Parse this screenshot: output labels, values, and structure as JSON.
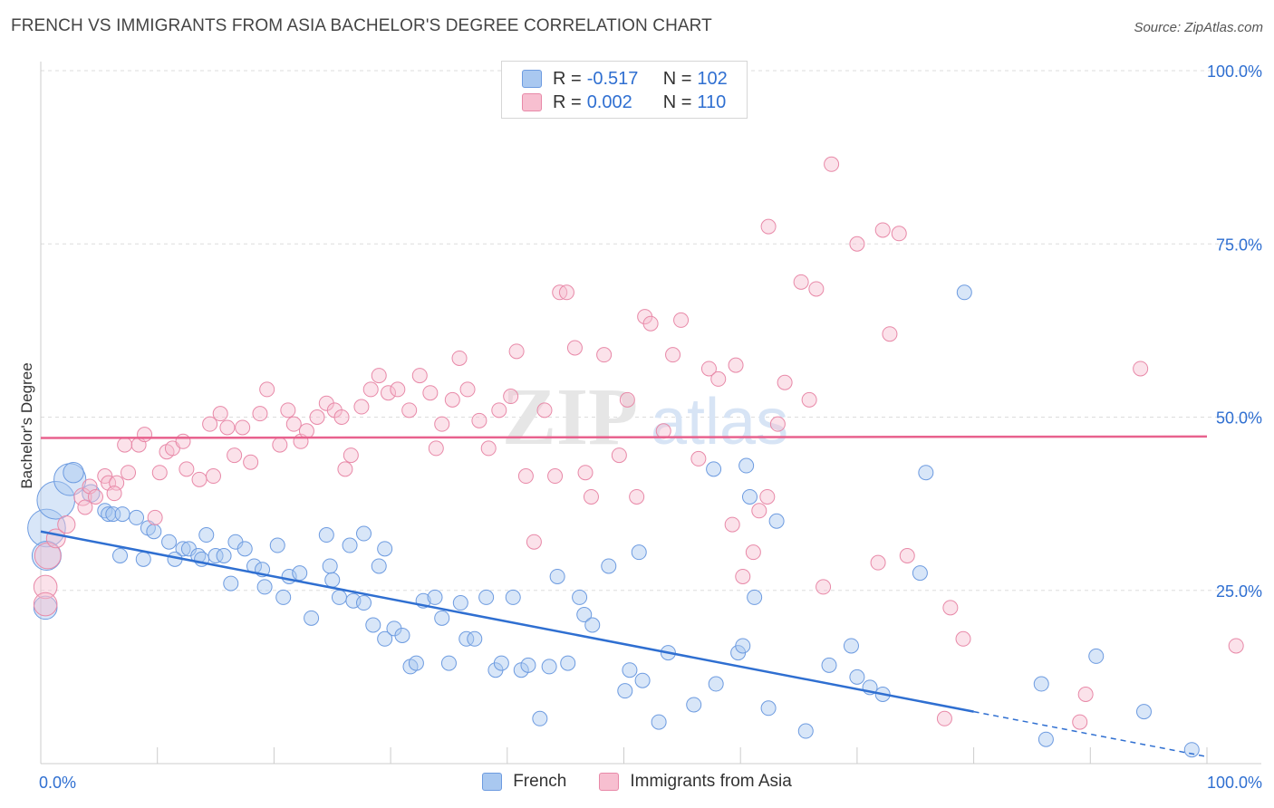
{
  "header": {
    "title": "FRENCH VS IMMIGRANTS FROM ASIA BACHELOR'S DEGREE CORRELATION CHART",
    "source": "Source: ZipAtlas.com"
  },
  "watermark": {
    "zip": "ZIP",
    "atlas": "atlas"
  },
  "legend": {
    "r_label": "R =",
    "n_label": "N =",
    "rows": [
      {
        "r": "-0.517",
        "n": "102",
        "color": "#a9c8f0",
        "border": "#6d9be0"
      },
      {
        "r": "0.002",
        "n": "110",
        "color": "#f7bfd0",
        "border": "#e889a8"
      }
    ]
  },
  "bottom_legend": [
    {
      "label": "French",
      "color": "#a9c8f0",
      "border": "#6d9be0"
    },
    {
      "label": "Immigrants from Asia",
      "color": "#f7bfd0",
      "border": "#e889a8"
    }
  ],
  "chart_data": {
    "type": "scatter",
    "ylabel": "Bachelor's Degree",
    "xlim": [
      0,
      100
    ],
    "ylim": [
      0,
      100
    ],
    "x_tick_labels": [
      {
        "value": 0,
        "label": "0.0%"
      },
      {
        "value": 100,
        "label": "100.0%"
      }
    ],
    "y_tick_labels": [
      {
        "value": 25,
        "label": "25.0%"
      },
      {
        "value": 50,
        "label": "50.0%"
      },
      {
        "value": 75,
        "label": "75.0%"
      },
      {
        "value": 100,
        "label": "100.0%"
      }
    ],
    "grid": true,
    "series": [
      {
        "name": "French",
        "color": "#6d9be0",
        "fill": "#a9c8f0",
        "line_color": "#2f6fd1",
        "trend": {
          "x0": 0,
          "y0": 33.5,
          "x1": 80,
          "y1": 7.5,
          "x_dash_end": 100,
          "y_dash_end": 1.0
        },
        "points": [
          [
            0.5,
            34,
            2.6
          ],
          [
            0.5,
            30,
            2.0
          ],
          [
            0.4,
            22.5,
            1.6
          ],
          [
            1.3,
            38,
            2.6
          ],
          [
            2.5,
            41,
            2.2
          ],
          [
            2.8,
            42,
            1.4
          ],
          [
            4.3,
            39,
            1.2
          ],
          [
            5.5,
            36.5,
            1
          ],
          [
            5.8,
            36,
            1
          ],
          [
            6.2,
            36,
            1
          ],
          [
            7,
            36,
            1
          ],
          [
            8.2,
            35.5,
            1
          ],
          [
            9.2,
            34,
            1
          ],
          [
            9.7,
            33.5,
            1
          ],
          [
            11,
            32,
            1
          ],
          [
            12.2,
            31,
            1
          ],
          [
            12.7,
            31,
            1
          ],
          [
            13.5,
            30,
            1
          ],
          [
            14.2,
            33,
            1
          ],
          [
            15,
            30,
            1
          ],
          [
            15.7,
            30,
            1
          ],
          [
            16.7,
            32,
            1
          ],
          [
            17.5,
            31,
            1
          ],
          [
            18.3,
            28.5,
            1
          ],
          [
            19,
            28,
            1
          ],
          [
            20.3,
            31.5,
            1
          ],
          [
            21.3,
            27,
            1
          ],
          [
            22.2,
            27.5,
            1
          ],
          [
            24.5,
            33,
            1
          ],
          [
            26.5,
            31.5,
            1
          ],
          [
            27.7,
            33.2,
            1
          ],
          [
            29,
            28.5,
            1
          ],
          [
            29.5,
            31,
            1
          ],
          [
            6.8,
            30,
            1
          ],
          [
            8.8,
            29.5,
            1
          ],
          [
            11.5,
            29.5,
            1
          ],
          [
            13.8,
            29.5,
            1
          ],
          [
            16.3,
            26,
            1
          ],
          [
            19.2,
            25.5,
            1
          ],
          [
            20.8,
            24,
            1
          ],
          [
            23.2,
            21,
            1
          ],
          [
            24.8,
            28.5,
            1
          ],
          [
            25,
            26.5,
            1
          ],
          [
            25.6,
            24,
            1
          ],
          [
            26.8,
            23.5,
            1
          ],
          [
            27.7,
            23.2,
            1
          ],
          [
            28.5,
            20,
            1
          ],
          [
            29.5,
            18,
            1
          ],
          [
            30.3,
            19.5,
            1
          ],
          [
            31,
            18.5,
            1
          ],
          [
            31.7,
            14,
            1
          ],
          [
            32.8,
            23.5,
            1
          ],
          [
            33.8,
            24,
            1
          ],
          [
            34.4,
            21,
            1
          ],
          [
            35,
            14.5,
            1
          ],
          [
            36,
            23.2,
            1
          ],
          [
            36.5,
            18,
            1
          ],
          [
            37.2,
            18,
            1
          ],
          [
            38.2,
            24,
            1
          ],
          [
            39,
            13.5,
            1
          ],
          [
            39.5,
            14.5,
            1
          ],
          [
            40.5,
            24,
            1
          ],
          [
            41.2,
            13.5,
            1
          ],
          [
            41.8,
            14.2,
            1
          ],
          [
            32.2,
            14.5,
            1
          ],
          [
            44.3,
            27,
            1
          ],
          [
            45.2,
            14.5,
            1
          ],
          [
            46.2,
            24,
            1
          ],
          [
            46.6,
            21.5,
            1
          ],
          [
            47.3,
            20,
            1
          ],
          [
            42.8,
            6.5,
            1
          ],
          [
            43.6,
            14,
            1
          ],
          [
            48.7,
            28.5,
            1
          ],
          [
            51.3,
            30.5,
            1
          ],
          [
            50.1,
            10.5,
            1
          ],
          [
            50.5,
            13.5,
            1
          ],
          [
            51.6,
            12,
            1
          ],
          [
            53,
            6,
            1
          ],
          [
            53.8,
            16,
            1
          ],
          [
            57.7,
            42.5,
            1
          ],
          [
            60.5,
            43,
            1
          ],
          [
            60.8,
            38.5,
            1
          ],
          [
            57.9,
            11.5,
            1
          ],
          [
            59.8,
            16,
            1
          ],
          [
            60.2,
            17,
            1
          ],
          [
            56,
            8.5,
            1
          ],
          [
            61.2,
            24,
            1
          ],
          [
            62.4,
            8,
            1
          ],
          [
            63.1,
            35,
            1
          ],
          [
            65.6,
            4.7,
            1
          ],
          [
            67.6,
            14.2,
            1
          ],
          [
            69.5,
            17,
            1
          ],
          [
            70,
            12.5,
            1
          ],
          [
            71.1,
            11,
            1
          ],
          [
            72.2,
            10,
            1
          ],
          [
            75.4,
            27.5,
            1
          ],
          [
            75.9,
            42,
            1
          ],
          [
            79.2,
            68,
            1
          ],
          [
            85.8,
            11.5,
            1
          ],
          [
            86.2,
            3.5,
            1
          ],
          [
            90.5,
            15.5,
            1
          ],
          [
            94.6,
            7.5,
            1
          ],
          [
            98.7,
            2,
            1
          ]
        ]
      },
      {
        "name": "Immigrants from Asia",
        "color": "#e889a8",
        "fill": "#f7bfd0",
        "line_color": "#e8628e",
        "trend": {
          "x0": 0,
          "y0": 47.0,
          "x1": 100,
          "y1": 47.2
        },
        "points": [
          [
            0.4,
            25.5,
            1.6
          ],
          [
            0.4,
            23,
            1.6
          ],
          [
            0.6,
            30,
            1.8
          ],
          [
            1.3,
            32.5,
            1.3
          ],
          [
            2.2,
            34.5,
            1.2
          ],
          [
            3.6,
            38.5,
            1.2
          ],
          [
            3.8,
            37,
            1
          ],
          [
            4.2,
            40,
            1
          ],
          [
            4.7,
            38.5,
            1
          ],
          [
            5.5,
            41.5,
            1
          ],
          [
            5.8,
            40.5,
            1
          ],
          [
            6.5,
            40.5,
            1
          ],
          [
            7.2,
            46,
            1
          ],
          [
            7.5,
            42,
            1
          ],
          [
            8.4,
            46,
            1
          ],
          [
            8.9,
            47.5,
            1
          ],
          [
            10.2,
            42,
            1
          ],
          [
            10.8,
            45,
            1
          ],
          [
            11.3,
            45.5,
            1
          ],
          [
            12.2,
            46.5,
            1
          ],
          [
            12.5,
            42.5,
            1
          ],
          [
            13.6,
            41,
            1
          ],
          [
            14.5,
            49,
            1
          ],
          [
            15.4,
            50.5,
            1
          ],
          [
            16,
            48.5,
            1
          ],
          [
            16.6,
            44.5,
            1
          ],
          [
            17.3,
            48.5,
            1
          ],
          [
            18,
            43.5,
            1
          ],
          [
            18.8,
            50.5,
            1
          ],
          [
            19.4,
            54,
            1
          ],
          [
            20.5,
            46,
            1
          ],
          [
            21.2,
            51,
            1
          ],
          [
            21.7,
            49,
            1
          ],
          [
            22.3,
            46.5,
            1
          ],
          [
            22.8,
            48,
            1
          ],
          [
            23.7,
            50,
            1
          ],
          [
            24.5,
            52,
            1
          ],
          [
            25.2,
            51,
            1
          ],
          [
            25.8,
            50,
            1
          ],
          [
            26.6,
            44.5,
            1
          ],
          [
            27.5,
            51.5,
            1
          ],
          [
            28.3,
            54,
            1
          ],
          [
            29,
            56,
            1
          ],
          [
            29.8,
            53.5,
            1
          ],
          [
            30.6,
            54,
            1
          ],
          [
            31.6,
            51,
            1
          ],
          [
            32.5,
            56,
            1
          ],
          [
            33.4,
            53.5,
            1
          ],
          [
            34.4,
            49,
            1
          ],
          [
            35.3,
            52.5,
            1
          ],
          [
            35.9,
            58.5,
            1
          ],
          [
            36.6,
            54,
            1
          ],
          [
            37.6,
            49.5,
            1
          ],
          [
            38.4,
            45.5,
            1
          ],
          [
            39.3,
            51,
            1
          ],
          [
            40.3,
            53,
            1
          ],
          [
            40.8,
            59.5,
            1
          ],
          [
            41.6,
            41.5,
            1
          ],
          [
            42.3,
            32,
            1
          ],
          [
            43.2,
            51,
            1
          ],
          [
            44.5,
            68,
            1
          ],
          [
            45.1,
            68,
            1
          ],
          [
            45.8,
            60,
            1
          ],
          [
            46.7,
            42,
            1
          ],
          [
            47.2,
            38.5,
            1
          ],
          [
            48.3,
            59,
            1
          ],
          [
            49.6,
            44.5,
            1
          ],
          [
            50.3,
            52.5,
            1
          ],
          [
            51.1,
            38.5,
            1
          ],
          [
            51.8,
            64.5,
            1
          ],
          [
            52.3,
            63.5,
            1
          ],
          [
            53.4,
            48,
            1
          ],
          [
            54.2,
            59,
            1
          ],
          [
            54.9,
            64,
            1
          ],
          [
            56.4,
            44,
            1
          ],
          [
            57.3,
            57,
            1
          ],
          [
            58.1,
            55.5,
            1
          ],
          [
            59.3,
            34.5,
            1
          ],
          [
            59.6,
            57.5,
            1
          ],
          [
            60.2,
            27,
            1
          ],
          [
            61.1,
            30.5,
            1
          ],
          [
            61.6,
            36.5,
            1
          ],
          [
            62.3,
            38.5,
            1
          ],
          [
            62.4,
            77.5,
            1
          ],
          [
            63.2,
            49,
            1
          ],
          [
            63.8,
            55,
            1
          ],
          [
            65.2,
            69.5,
            1
          ],
          [
            65.9,
            52.5,
            1
          ],
          [
            66.5,
            68.5,
            1
          ],
          [
            67.1,
            25.5,
            1
          ],
          [
            67.8,
            86.5,
            1
          ],
          [
            70,
            75,
            1
          ],
          [
            71.8,
            29,
            1
          ],
          [
            72.2,
            77,
            1
          ],
          [
            72.8,
            62,
            1
          ],
          [
            73.6,
            76.5,
            1
          ],
          [
            74.3,
            30,
            1
          ],
          [
            77.5,
            6.5,
            1
          ],
          [
            78,
            22.5,
            1
          ],
          [
            79.1,
            18,
            1
          ],
          [
            89.1,
            6,
            1
          ],
          [
            89.6,
            10,
            1
          ],
          [
            94.3,
            57,
            1
          ],
          [
            102.5,
            17,
            1
          ],
          [
            6.3,
            39,
            1
          ],
          [
            9.8,
            35.5,
            1
          ],
          [
            14.8,
            41.5,
            1
          ],
          [
            26.1,
            42.5,
            1
          ],
          [
            33.9,
            45.5,
            1
          ],
          [
            44.1,
            41.5,
            1
          ]
        ]
      }
    ]
  }
}
